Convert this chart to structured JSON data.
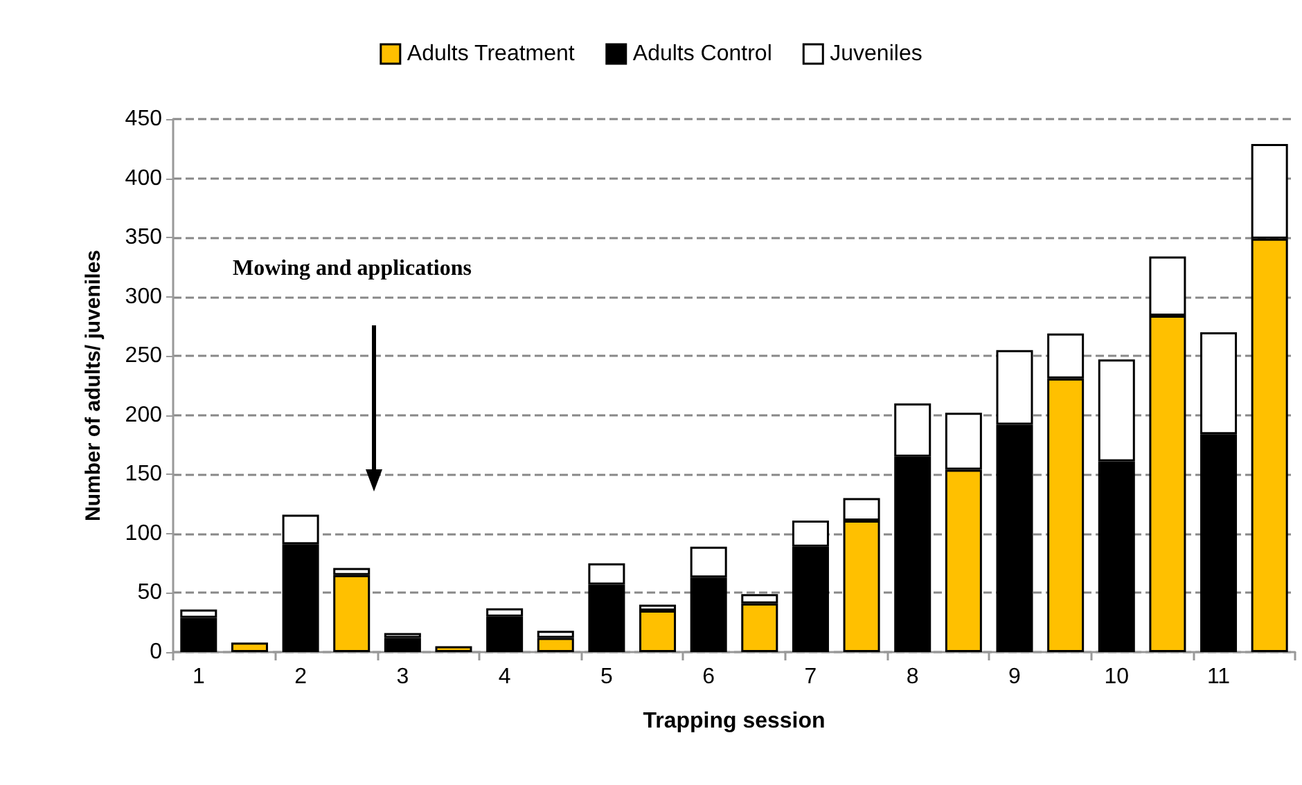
{
  "chart_data": {
    "type": "bar",
    "stacked": true,
    "xlabel": "Trapping session",
    "ylabel": "Number of adults/ juveniles",
    "annotations": [
      "Mowing and applications"
    ],
    "categories": [
      "1",
      null,
      "2",
      null,
      "3",
      null,
      "4",
      null,
      "5",
      null,
      "6",
      null,
      "7",
      null,
      "8",
      null,
      "9",
      null,
      "10",
      null,
      "11",
      null
    ],
    "series": [
      {
        "name": "Adults Treatment",
        "color": "#ffc000",
        "values": [
          null,
          8,
          null,
          65,
          null,
          5,
          null,
          12,
          null,
          35,
          null,
          41,
          null,
          111,
          null,
          154,
          null,
          231,
          null,
          284,
          null,
          349
        ]
      },
      {
        "name": "Adults Control",
        "color": "#000000",
        "values": [
          29,
          null,
          91,
          null,
          12,
          null,
          30,
          null,
          57,
          null,
          63,
          null,
          89,
          null,
          165,
          null,
          192,
          null,
          161,
          null,
          184,
          null
        ]
      },
      {
        "name": "Juveniles",
        "color": "#ffffff",
        "values": [
          7,
          null,
          25,
          6,
          4,
          null,
          7,
          6,
          18,
          5,
          26,
          8,
          22,
          19,
          45,
          48,
          63,
          38,
          86,
          50,
          86,
          80
        ]
      }
    ],
    "ylim": [
      0,
      450
    ],
    "yticks": [
      0,
      50,
      100,
      150,
      200,
      250,
      300,
      350,
      400,
      450
    ],
    "grid": "y",
    "legend": "top"
  }
}
